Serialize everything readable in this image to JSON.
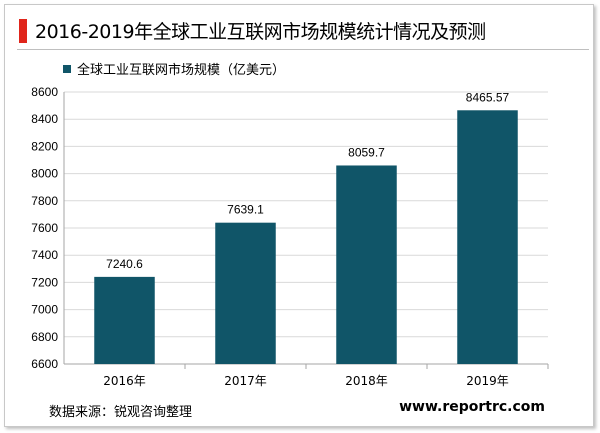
{
  "header": {
    "title": "2016-2019年全球工业互联网市场规模统计情况及预测"
  },
  "footer": {
    "source": "数据来源：锐观咨询整理",
    "website": "www.reportrc.com"
  },
  "colors": {
    "bar": "#105568",
    "accent": "#e0251b",
    "grid": "#d9d9d9",
    "axis": "#a6a6a6"
  },
  "chart_data": {
    "type": "bar",
    "categories": [
      "2016年",
      "2017年",
      "2018年",
      "2019年"
    ],
    "series": [
      {
        "name": "全球工业互联网市场规模（亿美元）",
        "values": [
          7240.6,
          7639.1,
          8059.7,
          8465.57
        ],
        "value_labels": [
          "7240.6",
          "7639.1",
          "8059.7",
          "8465.57"
        ]
      }
    ],
    "ylim": [
      6600,
      8600
    ],
    "yticks": [
      6600,
      6800,
      7000,
      7200,
      7400,
      7600,
      7800,
      8000,
      8200,
      8400,
      8600
    ],
    "grid": true,
    "legend_position": "top-left"
  }
}
